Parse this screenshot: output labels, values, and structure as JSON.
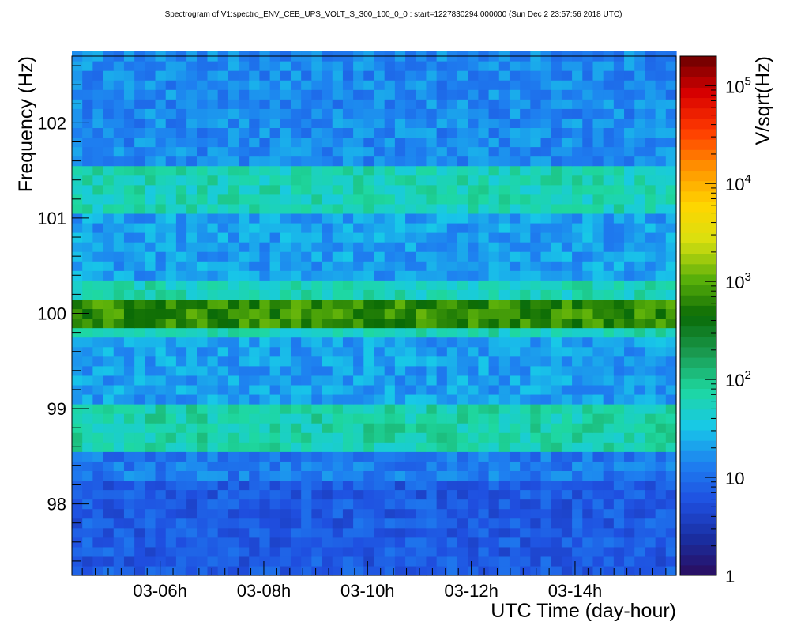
{
  "chart_data": {
    "type": "heatmap",
    "title": "Spectrogram of V1:spectro_ENV_CEB_UPS_VOLT_S_300_100_0_0 : start=1227830294.000000 (Sun Dec  2 23:57:56 2018 UTC)",
    "xlabel": "UTC Time (day-hour)",
    "ylabel": "Frequency (Hz)",
    "zlabel": "V/sqrt(Hz)",
    "x_ticks": [
      "03-06h",
      "03-08h",
      "03-10h",
      "03-12h",
      "03-14h"
    ],
    "x_tick_hours": [
      6,
      8,
      10,
      12,
      14
    ],
    "xlim_hours": [
      4.3,
      15.95
    ],
    "y_ticks": [
      "98",
      "99",
      "100",
      "101",
      "102"
    ],
    "y_tick_values": [
      98,
      99,
      100,
      101,
      102
    ],
    "ylim": [
      97.25,
      102.7
    ],
    "z_ticks": [
      "1",
      "10",
      "10^2",
      "10^3",
      "10^4",
      "10^5"
    ],
    "zlim": [
      1,
      200000
    ],
    "z_scale": "log",
    "colormap": [
      "#2a0c5e",
      "#1a2ea0",
      "#1f4fe0",
      "#1e7ff0",
      "#18c8e8",
      "#1ed8a0",
      "#1a9a50",
      "#0a6a06",
      "#5ab00a",
      "#d8e010",
      "#ffd500",
      "#ff9200",
      "#ff3a00",
      "#d80000",
      "#6a0000"
    ],
    "frequency_bands_hz": [
      {
        "freq_min": 97.25,
        "freq_max": 98.2,
        "level": 7
      },
      {
        "freq_min": 98.2,
        "freq_max": 98.5,
        "level": 12
      },
      {
        "freq_min": 98.5,
        "freq_max": 99.0,
        "level": 70
      },
      {
        "freq_min": 99.0,
        "freq_max": 99.7,
        "level": 20
      },
      {
        "freq_min": 99.7,
        "freq_max": 99.85,
        "level": 60
      },
      {
        "freq_min": 99.85,
        "freq_max": 100.15,
        "level": 700
      },
      {
        "freq_min": 100.15,
        "freq_max": 100.3,
        "level": 60
      },
      {
        "freq_min": 100.3,
        "freq_max": 101.0,
        "level": 20
      },
      {
        "freq_min": 101.0,
        "freq_max": 101.55,
        "level": 60
      },
      {
        "freq_min": 101.55,
        "freq_max": 102.7,
        "level": 15
      }
    ],
    "time_bins": 58,
    "freq_bin_hz": 0.1
  }
}
